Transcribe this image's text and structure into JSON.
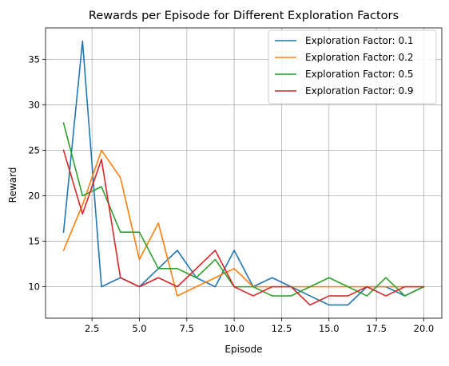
{
  "chart_data": {
    "type": "line",
    "title": "Rewards per Episode for Different Exploration Factors",
    "xlabel": "Episode",
    "ylabel": "Reward",
    "xlim": [
      0.05,
      20.95
    ],
    "ylim": [
      6.55,
      38.45
    ],
    "xticks": [
      2.5,
      5.0,
      7.5,
      10.0,
      12.5,
      15.0,
      17.5,
      20.0
    ],
    "xtick_labels": [
      "2.5",
      "5.0",
      "7.5",
      "10.0",
      "12.5",
      "15.0",
      "17.5",
      "20.0"
    ],
    "yticks": [
      10,
      15,
      20,
      25,
      30,
      35
    ],
    "ytick_labels": [
      "10",
      "15",
      "20",
      "25",
      "30",
      "35"
    ],
    "grid": true,
    "legend_position": "top-right",
    "x": [
      1,
      2,
      3,
      4,
      5,
      6,
      7,
      8,
      9,
      10,
      11,
      12,
      13,
      14,
      15,
      16,
      17,
      18,
      19,
      20
    ],
    "series": [
      {
        "name": "Exploration Factor: 0.1",
        "color": "#1f77b4",
        "values": [
          16,
          37,
          10,
          11,
          10,
          12,
          14,
          11,
          10,
          14,
          10,
          11,
          10,
          9,
          8,
          8,
          10,
          10,
          9,
          10
        ]
      },
      {
        "name": "Exploration Factor: 0.2",
        "color": "#ff7f0e",
        "values": [
          14,
          19,
          25,
          22,
          13,
          17,
          9,
          10,
          11,
          12,
          10,
          10,
          10,
          10,
          10,
          10,
          10,
          10,
          10,
          10
        ]
      },
      {
        "name": "Exploration Factor: 0.5",
        "color": "#2ca02c",
        "values": [
          28,
          20,
          21,
          16,
          16,
          12,
          12,
          11,
          13,
          10,
          10,
          9,
          9,
          10,
          11,
          10,
          9,
          11,
          9,
          10
        ]
      },
      {
        "name": "Exploration Factor: 0.9",
        "color": "#d62728",
        "values": [
          25,
          18,
          24,
          11,
          10,
          11,
          10,
          12,
          14,
          10,
          9,
          10,
          10,
          8,
          9,
          9,
          10,
          9,
          10,
          10
        ]
      }
    ]
  }
}
